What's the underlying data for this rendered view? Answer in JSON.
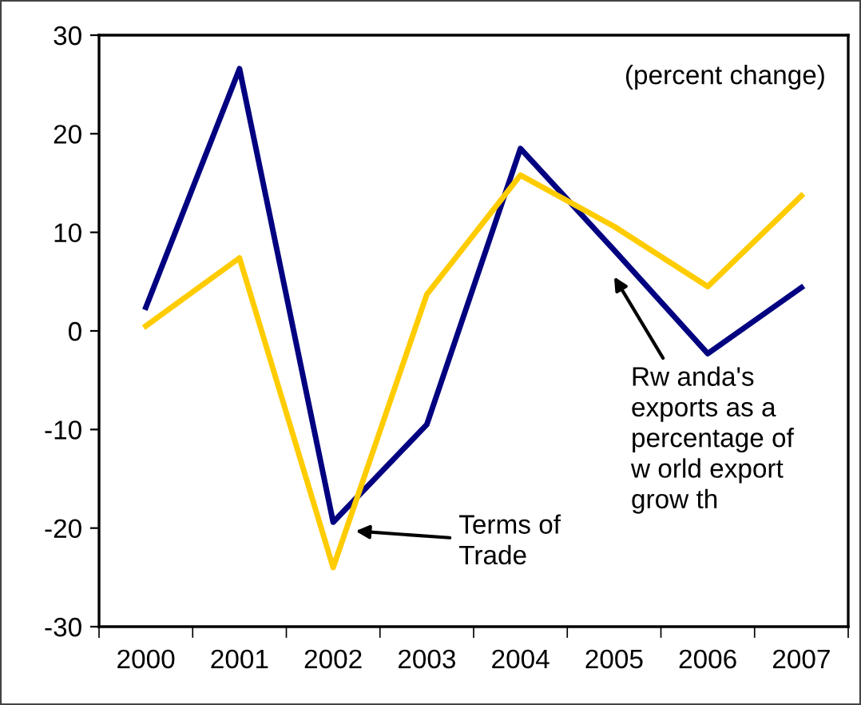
{
  "chart_data": {
    "type": "line",
    "categories": [
      "2000",
      "2001",
      "2002",
      "2003",
      "2004",
      "2005",
      "2006",
      "2007"
    ],
    "series": [
      {
        "color": "#000080",
        "values": [
          2.4,
          26.6,
          -19.4,
          -9.5,
          18.5,
          8.2,
          -2.3,
          4.4
        ]
      },
      {
        "color": "#ffcc00",
        "values": [
          0.5,
          7.4,
          -24.0,
          3.7,
          15.8,
          10.6,
          4.5,
          13.7
        ]
      }
    ],
    "ylim": [
      -30,
      30
    ],
    "yticks": [
      -30,
      -20,
      -10,
      0,
      10,
      20,
      30
    ],
    "grid": false,
    "legend": false,
    "marker": "none",
    "line_style": "solid",
    "annotations": [
      "(percent change)",
      "Terms of\nTrade",
      "Rw anda's\nexports as a\npercentage of\nw orld export\ngrow th"
    ]
  }
}
